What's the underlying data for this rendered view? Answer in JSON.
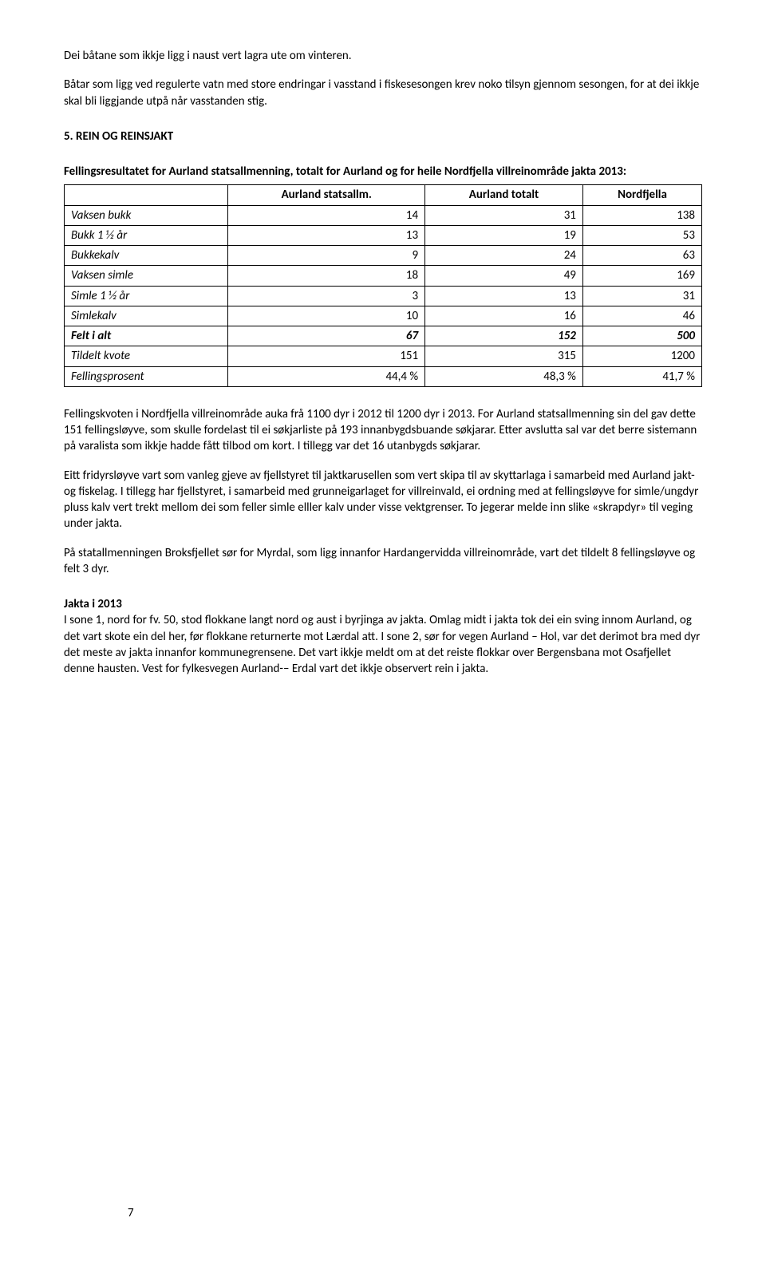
{
  "intro": {
    "p1": "Dei båtane som ikkje ligg i naust vert lagra ute om vinteren.",
    "p2": "Båtar som ligg ved regulerte vatn med store endringar i vasstand i fiskesesongen krev noko tilsyn gjennom sesongen, for at dei ikkje skal bli liggjande utpå når vasstanden stig."
  },
  "section5": {
    "heading": "5. REIN OG REINSJAKT",
    "lead": "Fellingsresultatet for Aurland statsallmenning, totalt for Aurland og for heile Nordfjella villreinområde jakta 2013:"
  },
  "table": {
    "columns": [
      "",
      "Aurland statsallm.",
      "Aurland totalt",
      "Nordfjella"
    ],
    "rows": [
      {
        "label": "Vaksen bukk",
        "a": "14",
        "b": "31",
        "c": "138",
        "bold": false
      },
      {
        "label": "Bukk 1 ½ år",
        "a": "13",
        "b": "19",
        "c": "53",
        "bold": false
      },
      {
        "label": "Bukkekalv",
        "a": "9",
        "b": "24",
        "c": "63",
        "bold": false
      },
      {
        "label": "Vaksen simle",
        "a": "18",
        "b": "49",
        "c": "169",
        "bold": false
      },
      {
        "label": "Simle 1 ½ år",
        "a": "3",
        "b": "13",
        "c": "31",
        "bold": false
      },
      {
        "label": "Simlekalv",
        "a": "10",
        "b": "16",
        "c": "46",
        "bold": false
      },
      {
        "label": "Felt i alt",
        "a": "67",
        "b": "152",
        "c": "500",
        "bold": true
      },
      {
        "label": "Tildelt kvote",
        "a": "151",
        "b": "315",
        "c": "1200",
        "bold": false
      },
      {
        "label": "Fellingsprosent",
        "a": "44,4 %",
        "b": "48,3 %",
        "c": "41,7 %",
        "bold": false
      }
    ]
  },
  "body": {
    "p1": "Fellingskvoten i Nordfjella villreinområde auka frå 1100 dyr i 2012 til 1200 dyr i 2013. For Aurland statsallmenning sin del gav dette 151 fellingsløyve, som skulle fordelast til ei søkjarliste på 193 innanbygdsbuande søkjarar. Etter avslutta sal var det berre sistemann på varalista som ikkje hadde fått tilbod om kort.  I tillegg var det 16 utanbygds søkjarar.",
    "p2": "Eitt fridyrsløyve vart som vanleg gjeve av fjellstyret til jaktkarusellen som vert skipa til av skyttarlaga i samarbeid med Aurland jakt- og fiskelag. I tillegg har fjellstyret, i samarbeid med grunneigarlaget for villreinvald, ei ordning med at fellingsløyve for simle/ungdyr pluss kalv vert trekt mellom dei som feller simle elller kalv under visse vektgrenser. To jegerar melde inn slike «skrapdyr» til veging under jakta.",
    "p3": "På statallmenningen Broksfjellet sør for Myrdal, som ligg innanfor Hardangervidda villreinområde, vart det tildelt 8 fellingsløyve og felt 3 dyr."
  },
  "jakta": {
    "heading": "Jakta i 2013",
    "p1": "I sone 1, nord for fv. 50, stod flokkane langt nord og aust i byrjinga av jakta. Omlag midt i jakta tok dei ein sving innom Aurland, og det vart skote ein del her, før flokkane returnerte mot Lærdal att.  I sone 2, sør for vegen Aurland – Hol, var det derimot bra med dyr det meste av jakta innanfor kommunegrensene. Det vart ikkje meldt om at det reiste flokkar over Bergensbana mot Osafjellet denne hausten. Vest for fylkesvegen Aurland-– Erdal vart det ikkje observert rein i jakta."
  },
  "page_number": "7"
}
